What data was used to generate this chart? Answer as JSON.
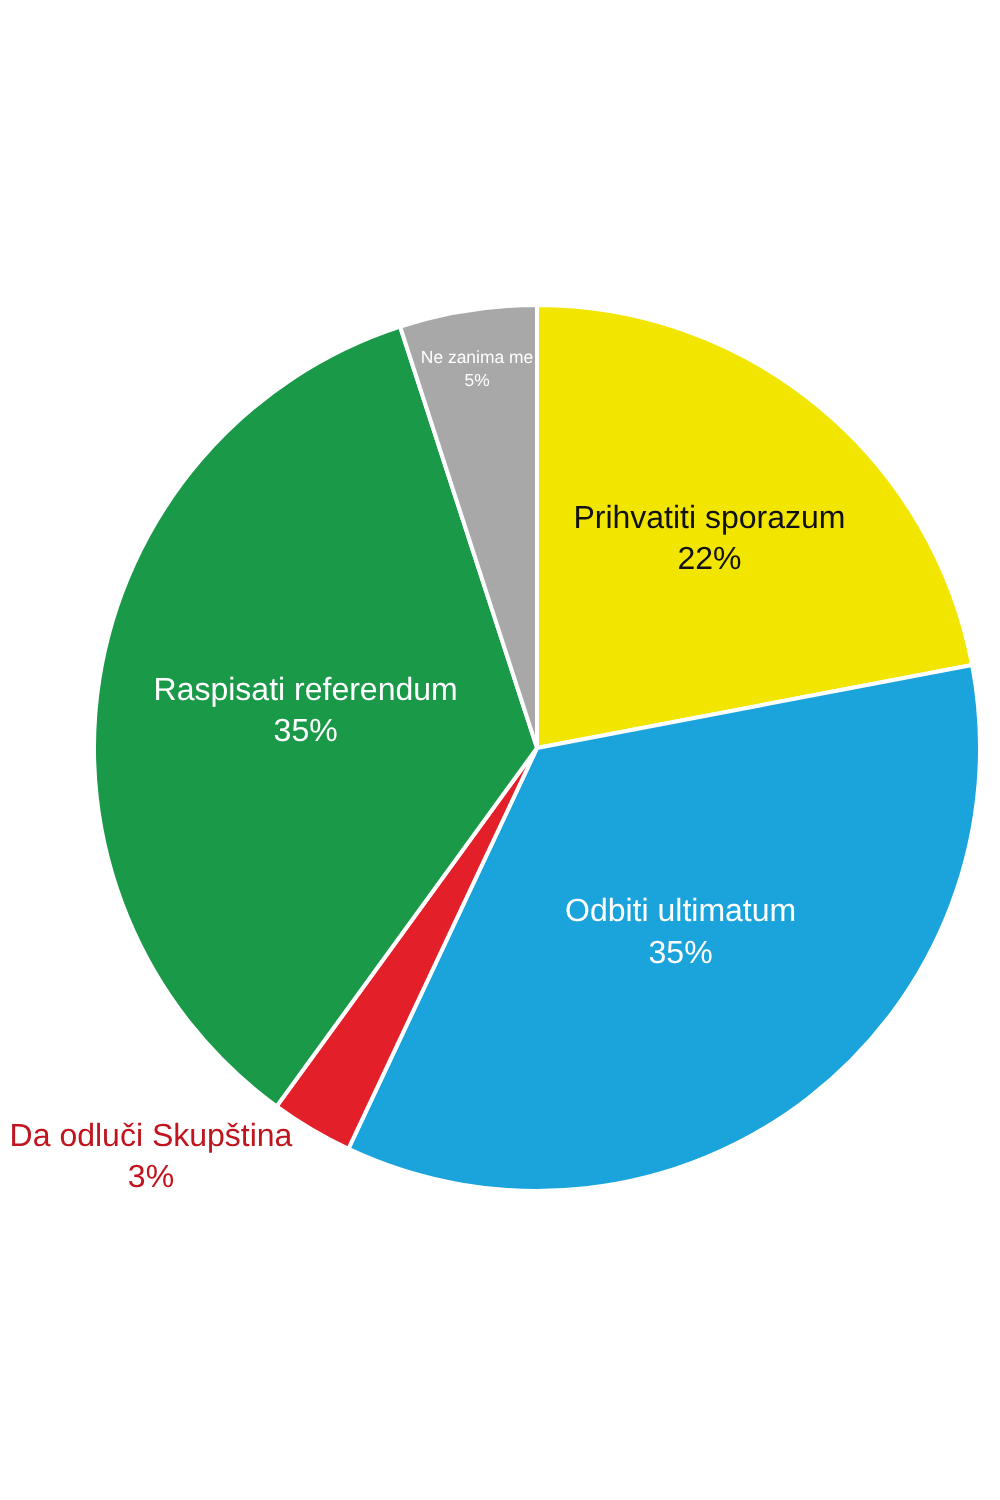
{
  "chart_data": {
    "type": "pie",
    "categories": [
      "Prihvatiti sporazum",
      "Odbiti ultimatum",
      "Da odluči Skupština",
      "Raspisati referendum",
      "Ne zanima me"
    ],
    "values": [
      22,
      35,
      3,
      35,
      5
    ],
    "value_labels": [
      "22%",
      "35%",
      "3%",
      "35%",
      "5%"
    ],
    "colors": [
      "#f2e600",
      "#1ba3dc",
      "#e3202a",
      "#1a9a48",
      "#a8a8a8"
    ],
    "legend": false
  }
}
